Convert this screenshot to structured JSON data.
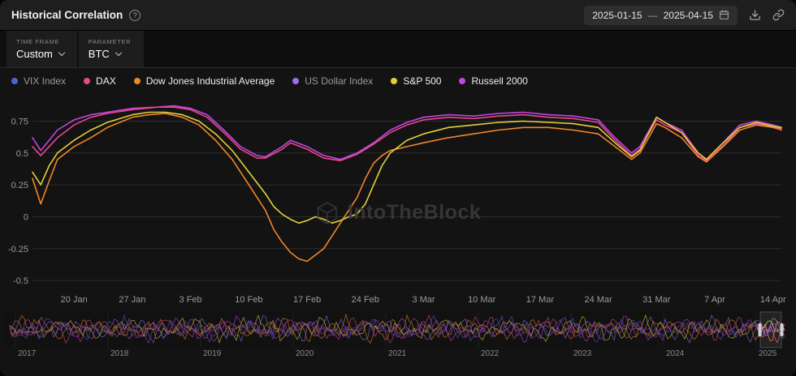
{
  "header": {
    "title": "Historical Correlation",
    "help_glyph": "?",
    "date_range": {
      "start": "2025-01-15",
      "separator": "—",
      "end": "2025-04-15"
    }
  },
  "controls": {
    "time_frame": {
      "label": "TIME FRAME",
      "value": "Custom"
    },
    "parameter": {
      "label": "PARAMETER",
      "value": "BTC"
    }
  },
  "legend": [
    {
      "label": "VIX Index",
      "color": "#4c66d0",
      "muted": true
    },
    {
      "label": "DAX",
      "color": "#e8478b",
      "muted": false
    },
    {
      "label": "Dow Jones Industrial Average",
      "color": "#f0862a",
      "muted": false
    },
    {
      "label": "US Dollar Index",
      "color": "#9d6df0",
      "muted": true
    },
    {
      "label": "S&P 500",
      "color": "#e3cf3a",
      "muted": false
    },
    {
      "label": "Russell 2000",
      "color": "#c245e5",
      "muted": false
    }
  ],
  "watermark": {
    "text": "IntoTheBlock"
  },
  "chart_data": {
    "type": "line",
    "title": "Historical Correlation of BTC vs traditional assets",
    "x_unit": "days since 2025-01-15",
    "x_range_days": [
      0,
      90
    ],
    "ylim": [
      -0.55,
      0.95
    ],
    "yticks": [
      "0.75",
      "0.5",
      "0.25",
      "0",
      "-0.25",
      "-0.5"
    ],
    "ytick_values": [
      0.75,
      0.5,
      0.25,
      0,
      -0.25,
      -0.5
    ],
    "xticks": [
      "20 Jan",
      "27 Jan",
      "3 Feb",
      "10 Feb",
      "17 Feb",
      "24 Feb",
      "3 Mar",
      "10 Mar",
      "17 Mar",
      "24 Mar",
      "31 Mar",
      "7 Apr",
      "14 Apr"
    ],
    "xtick_days": [
      5,
      12,
      19,
      26,
      33,
      40,
      47,
      54,
      61,
      68,
      75,
      82,
      89
    ],
    "grid": "horizontal",
    "legend_position": "top",
    "series": [
      {
        "name": "Russell 2000",
        "color": "#c245e5",
        "x": [
          0,
          1,
          2,
          3,
          5,
          7,
          9,
          12,
          15,
          17,
          19,
          21,
          23,
          25,
          27,
          28,
          30,
          31,
          33,
          35,
          37,
          39,
          41,
          43,
          45,
          47,
          50,
          53,
          56,
          59,
          62,
          65,
          68,
          70,
          72,
          73,
          75,
          76,
          78,
          80,
          81,
          83,
          85,
          87,
          89,
          90
        ],
        "y": [
          0.62,
          0.52,
          0.6,
          0.68,
          0.76,
          0.8,
          0.82,
          0.85,
          0.86,
          0.87,
          0.85,
          0.8,
          0.68,
          0.55,
          0.48,
          0.47,
          0.55,
          0.6,
          0.55,
          0.48,
          0.45,
          0.5,
          0.58,
          0.68,
          0.74,
          0.78,
          0.8,
          0.79,
          0.81,
          0.82,
          0.8,
          0.79,
          0.76,
          0.62,
          0.5,
          0.55,
          0.78,
          0.74,
          0.68,
          0.5,
          0.45,
          0.58,
          0.72,
          0.75,
          0.72,
          0.7
        ]
      },
      {
        "name": "DAX",
        "color": "#e8478b",
        "x": [
          0,
          1,
          2,
          3,
          5,
          7,
          9,
          12,
          15,
          17,
          19,
          21,
          23,
          25,
          27,
          28,
          30,
          31,
          33,
          35,
          37,
          39,
          41,
          43,
          45,
          47,
          50,
          53,
          56,
          59,
          62,
          65,
          68,
          70,
          72,
          73,
          75,
          76,
          78,
          80,
          81,
          83,
          85,
          87,
          89,
          90
        ],
        "y": [
          0.55,
          0.48,
          0.55,
          0.62,
          0.72,
          0.78,
          0.81,
          0.84,
          0.86,
          0.86,
          0.84,
          0.78,
          0.66,
          0.53,
          0.46,
          0.46,
          0.53,
          0.58,
          0.53,
          0.46,
          0.44,
          0.49,
          0.57,
          0.66,
          0.72,
          0.76,
          0.78,
          0.77,
          0.79,
          0.8,
          0.78,
          0.77,
          0.74,
          0.6,
          0.48,
          0.53,
          0.76,
          0.72,
          0.66,
          0.48,
          0.44,
          0.56,
          0.7,
          0.73,
          0.7,
          0.68
        ]
      },
      {
        "name": "Dow Jones Industrial Average",
        "color": "#f0862a",
        "x": [
          0,
          1,
          2,
          3,
          5,
          7,
          9,
          12,
          14,
          16,
          18,
          20,
          22,
          24,
          26,
          28,
          29,
          30,
          31,
          32,
          33,
          34,
          35,
          36,
          37,
          38,
          39,
          40,
          41,
          42,
          43,
          45,
          47,
          50,
          53,
          56,
          59,
          62,
          65,
          68,
          70,
          72,
          73,
          75,
          76,
          78,
          80,
          81,
          83,
          85,
          87,
          89,
          90
        ],
        "y": [
          0.3,
          0.1,
          0.28,
          0.45,
          0.55,
          0.62,
          0.7,
          0.78,
          0.8,
          0.81,
          0.78,
          0.72,
          0.6,
          0.45,
          0.25,
          0.05,
          -0.1,
          -0.2,
          -0.28,
          -0.33,
          -0.35,
          -0.3,
          -0.25,
          -0.15,
          -0.05,
          0.05,
          0.15,
          0.3,
          0.42,
          0.48,
          0.52,
          0.55,
          0.58,
          0.62,
          0.65,
          0.68,
          0.7,
          0.7,
          0.68,
          0.65,
          0.55,
          0.45,
          0.5,
          0.73,
          0.7,
          0.62,
          0.47,
          0.43,
          0.55,
          0.68,
          0.72,
          0.7,
          0.69
        ]
      },
      {
        "name": "S&P 500",
        "color": "#e3cf3a",
        "x": [
          0,
          1,
          2,
          3,
          5,
          7,
          9,
          12,
          14,
          16,
          18,
          20,
          22,
          24,
          26,
          28,
          29,
          30,
          31,
          32,
          33,
          34,
          35,
          36,
          37,
          38,
          39,
          40,
          41,
          42,
          43,
          45,
          47,
          50,
          53,
          56,
          59,
          62,
          65,
          68,
          70,
          72,
          73,
          75,
          76,
          78,
          80,
          81,
          83,
          85,
          87,
          89,
          90
        ],
        "y": [
          0.35,
          0.25,
          0.4,
          0.5,
          0.6,
          0.68,
          0.74,
          0.8,
          0.82,
          0.82,
          0.8,
          0.75,
          0.65,
          0.52,
          0.35,
          0.18,
          0.08,
          0.02,
          -0.02,
          -0.05,
          -0.03,
          0.0,
          -0.02,
          -0.05,
          -0.03,
          0.0,
          0.02,
          0.1,
          0.25,
          0.4,
          0.5,
          0.6,
          0.65,
          0.7,
          0.72,
          0.74,
          0.75,
          0.74,
          0.73,
          0.7,
          0.58,
          0.47,
          0.52,
          0.78,
          0.74,
          0.66,
          0.5,
          0.45,
          0.58,
          0.7,
          0.74,
          0.71,
          0.7
        ]
      }
    ]
  },
  "navigator": {
    "years": [
      "2017",
      "2018",
      "2019",
      "2020",
      "2021",
      "2022",
      "2023",
      "2024",
      "2025"
    ],
    "series_colors": [
      "#4c66d0",
      "#e8478b",
      "#f0862a",
      "#9d6df0",
      "#e3cf3a",
      "#c245e5"
    ],
    "selection": {
      "start": "2025-01-15",
      "end": "2025-04-15"
    }
  }
}
